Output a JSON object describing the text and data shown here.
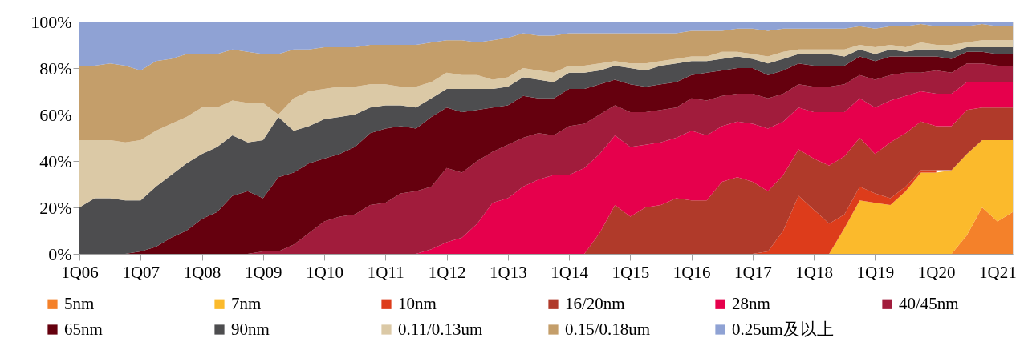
{
  "chart_data": {
    "type": "area",
    "stacked": true,
    "categories": [
      "1Q06",
      null,
      null,
      null,
      "1Q07",
      null,
      null,
      null,
      "1Q08",
      null,
      null,
      null,
      "1Q09",
      null,
      null,
      null,
      "1Q10",
      null,
      null,
      null,
      "1Q11",
      null,
      null,
      null,
      "1Q12",
      null,
      null,
      null,
      "1Q13",
      null,
      null,
      null,
      "1Q14",
      null,
      null,
      null,
      "1Q15",
      null,
      null,
      null,
      "1Q16",
      null,
      null,
      null,
      "1Q17",
      null,
      null,
      null,
      "1Q18",
      null,
      null,
      null,
      "1Q19",
      null,
      null,
      null,
      "1Q20",
      null,
      null,
      null,
      "1Q21",
      null
    ],
    "series": [
      {
        "name": "5nm",
        "color": "#f4812a",
        "values": [
          0,
          0,
          0,
          0,
          0,
          0,
          0,
          0,
          0,
          0,
          0,
          0,
          0,
          0,
          0,
          0,
          0,
          0,
          0,
          0,
          0,
          0,
          0,
          0,
          0,
          0,
          0,
          0,
          0,
          0,
          0,
          0,
          0,
          0,
          0,
          0,
          0,
          0,
          0,
          0,
          0,
          0,
          0,
          0,
          0,
          0,
          0,
          0,
          0,
          0,
          0,
          0,
          0,
          0,
          0,
          0,
          0,
          0,
          8,
          20,
          14,
          18
        ]
      },
      {
        "name": "7nm",
        "color": "#fbba2c",
        "values": [
          0,
          0,
          0,
          0,
          0,
          0,
          0,
          0,
          0,
          0,
          0,
          0,
          0,
          0,
          0,
          0,
          0,
          0,
          0,
          0,
          0,
          0,
          0,
          0,
          0,
          0,
          0,
          0,
          0,
          0,
          0,
          0,
          0,
          0,
          0,
          0,
          0,
          0,
          0,
          0,
          0,
          0,
          0,
          0,
          0,
          0,
          0,
          0,
          0,
          0,
          11,
          23,
          22,
          21,
          27,
          35,
          35,
          36,
          35,
          29,
          35,
          31
        ]
      },
      {
        "name": "10nm",
        "color": "#dd3c1b",
        "values": [
          0,
          0,
          0,
          0,
          0,
          0,
          0,
          0,
          0,
          0,
          0,
          0,
          0,
          0,
          0,
          0,
          0,
          0,
          0,
          0,
          0,
          0,
          0,
          0,
          0,
          0,
          0,
          0,
          0,
          0,
          0,
          0,
          0,
          0,
          0,
          0,
          0,
          0,
          0,
          0,
          0,
          0,
          0,
          0,
          0,
          1,
          10,
          25,
          19,
          13,
          6,
          6,
          4,
          3,
          2,
          1,
          1,
          null,
          null,
          null,
          null,
          null
        ]
      },
      {
        "name": "16/20nm",
        "color": "#b03a2a",
        "values": [
          0,
          0,
          0,
          0,
          0,
          0,
          0,
          0,
          0,
          0,
          0,
          0,
          0,
          0,
          0,
          0,
          0,
          0,
          0,
          0,
          0,
          0,
          0,
          0,
          0,
          0,
          0,
          0,
          0,
          0,
          0,
          0,
          0,
          0,
          9,
          21,
          16,
          20,
          21,
          24,
          23,
          23,
          31,
          33,
          31,
          26,
          24,
          20,
          22,
          25,
          25,
          21,
          17,
          24,
          23,
          21,
          19,
          19,
          19,
          14,
          14,
          14
        ]
      },
      {
        "name": "28nm",
        "color": "#e6004c",
        "values": [
          0,
          0,
          0,
          0,
          0,
          0,
          0,
          0,
          0,
          0,
          0,
          0,
          0,
          0,
          0,
          0,
          0,
          0,
          0,
          0,
          0,
          0,
          0,
          2,
          5,
          7,
          13,
          22,
          24,
          29,
          32,
          34,
          34,
          37,
          34,
          30,
          30,
          27,
          27,
          26,
          30,
          28,
          24,
          24,
          25,
          27,
          23,
          18,
          20,
          23,
          19,
          17,
          20,
          18,
          16,
          13,
          14,
          14,
          12,
          11,
          11,
          11
        ]
      },
      {
        "name": "40/45nm",
        "color": "#a11c3c",
        "values": [
          0,
          0,
          0,
          0,
          0,
          0,
          0,
          0,
          0,
          0,
          0,
          0,
          1,
          1,
          4,
          9,
          14,
          16,
          17,
          21,
          22,
          26,
          27,
          27,
          32,
          28,
          27,
          22,
          23,
          21,
          20,
          17,
          21,
          19,
          17,
          13,
          15,
          14,
          14,
          13,
          14,
          15,
          13,
          12,
          13,
          13,
          12,
          10,
          11,
          11,
          12,
          10,
          12,
          11,
          10,
          8,
          10,
          9,
          8,
          8,
          7,
          7
        ]
      },
      {
        "name": "65nm",
        "color": "#65000e",
        "values": [
          0,
          0,
          0,
          0,
          1,
          3,
          7,
          10,
          15,
          18,
          25,
          27,
          23,
          32,
          31,
          30,
          27,
          27,
          29,
          31,
          32,
          29,
          27,
          30,
          26,
          26,
          22,
          19,
          17,
          18,
          15,
          16,
          16,
          15,
          13,
          11,
          12,
          11,
          11,
          11,
          10,
          12,
          11,
          11,
          11,
          10,
          10,
          9,
          9,
          9,
          8,
          8,
          8,
          8,
          7,
          7,
          6,
          6,
          5,
          5,
          5,
          5
        ]
      },
      {
        "name": "90nm",
        "color": "#4d4d4f",
        "values": [
          20,
          24,
          24,
          23,
          22,
          26,
          27,
          29,
          28,
          28,
          26,
          21,
          25,
          26,
          18,
          16,
          17,
          16,
          14,
          11,
          10,
          9,
          9,
          8,
          8,
          10,
          9,
          8,
          8,
          8,
          8,
          7,
          7,
          7,
          6,
          6,
          7,
          7,
          8,
          8,
          6,
          5,
          5,
          5,
          4,
          5,
          5,
          4,
          5,
          5,
          4,
          3,
          3,
          3,
          2,
          3,
          3,
          3,
          2,
          2,
          3,
          3
        ]
      },
      {
        "name": "0.11/0.13um",
        "color": "#dbc9a6",
        "values": [
          29,
          25,
          25,
          25,
          26,
          24,
          22,
          20,
          20,
          17,
          15,
          17,
          16,
          1,
          14,
          15,
          13,
          13,
          12,
          10,
          9,
          8,
          9,
          7,
          7,
          6,
          6,
          4,
          4,
          4,
          4,
          4,
          3,
          3,
          3,
          2,
          2,
          3,
          2,
          2,
          2,
          2,
          3,
          2,
          2,
          3,
          3,
          2,
          2,
          2,
          3,
          2,
          3,
          2,
          2,
          3,
          2,
          3,
          2,
          3,
          3,
          3
        ]
      },
      {
        "name": "0.15/0.18um",
        "color": "#c49e6a",
        "values": [
          32,
          32,
          33,
          33,
          30,
          30,
          28,
          27,
          23,
          23,
          22,
          22,
          21,
          26,
          21,
          18,
          18,
          17,
          17,
          17,
          17,
          18,
          18,
          17,
          14,
          15,
          14,
          17,
          17,
          15,
          15,
          16,
          14,
          14,
          13,
          12,
          13,
          13,
          12,
          11,
          11,
          11,
          9,
          10,
          11,
          11,
          10,
          9,
          9,
          9,
          9,
          8,
          8,
          8,
          9,
          8,
          8,
          8,
          7,
          7,
          6,
          6
        ]
      },
      {
        "name": "0.25um及以上",
        "color": "#8fa2d4",
        "values": [
          19,
          19,
          18,
          19,
          21,
          17,
          16,
          14,
          14,
          14,
          12,
          13,
          14,
          14,
          12,
          12,
          11,
          11,
          11,
          10,
          10,
          10,
          10,
          9,
          8,
          8,
          9,
          8,
          7,
          5,
          6,
          6,
          5,
          5,
          5,
          5,
          5,
          5,
          5,
          5,
          4,
          4,
          4,
          3,
          3,
          4,
          3,
          3,
          3,
          3,
          3,
          2,
          3,
          2,
          2,
          1,
          2,
          2,
          2,
          1,
          2,
          2
        ]
      }
    ],
    "ylim": [
      0,
      100
    ],
    "yticks": [
      {
        "value": 0,
        "label": "0%"
      },
      {
        "value": 20,
        "label": "20%"
      },
      {
        "value": 40,
        "label": "40%"
      },
      {
        "value": 60,
        "label": "60%"
      },
      {
        "value": 80,
        "label": "80%"
      },
      {
        "value": 100,
        "label": "100%"
      }
    ],
    "grid": false,
    "legend": "bottom"
  }
}
